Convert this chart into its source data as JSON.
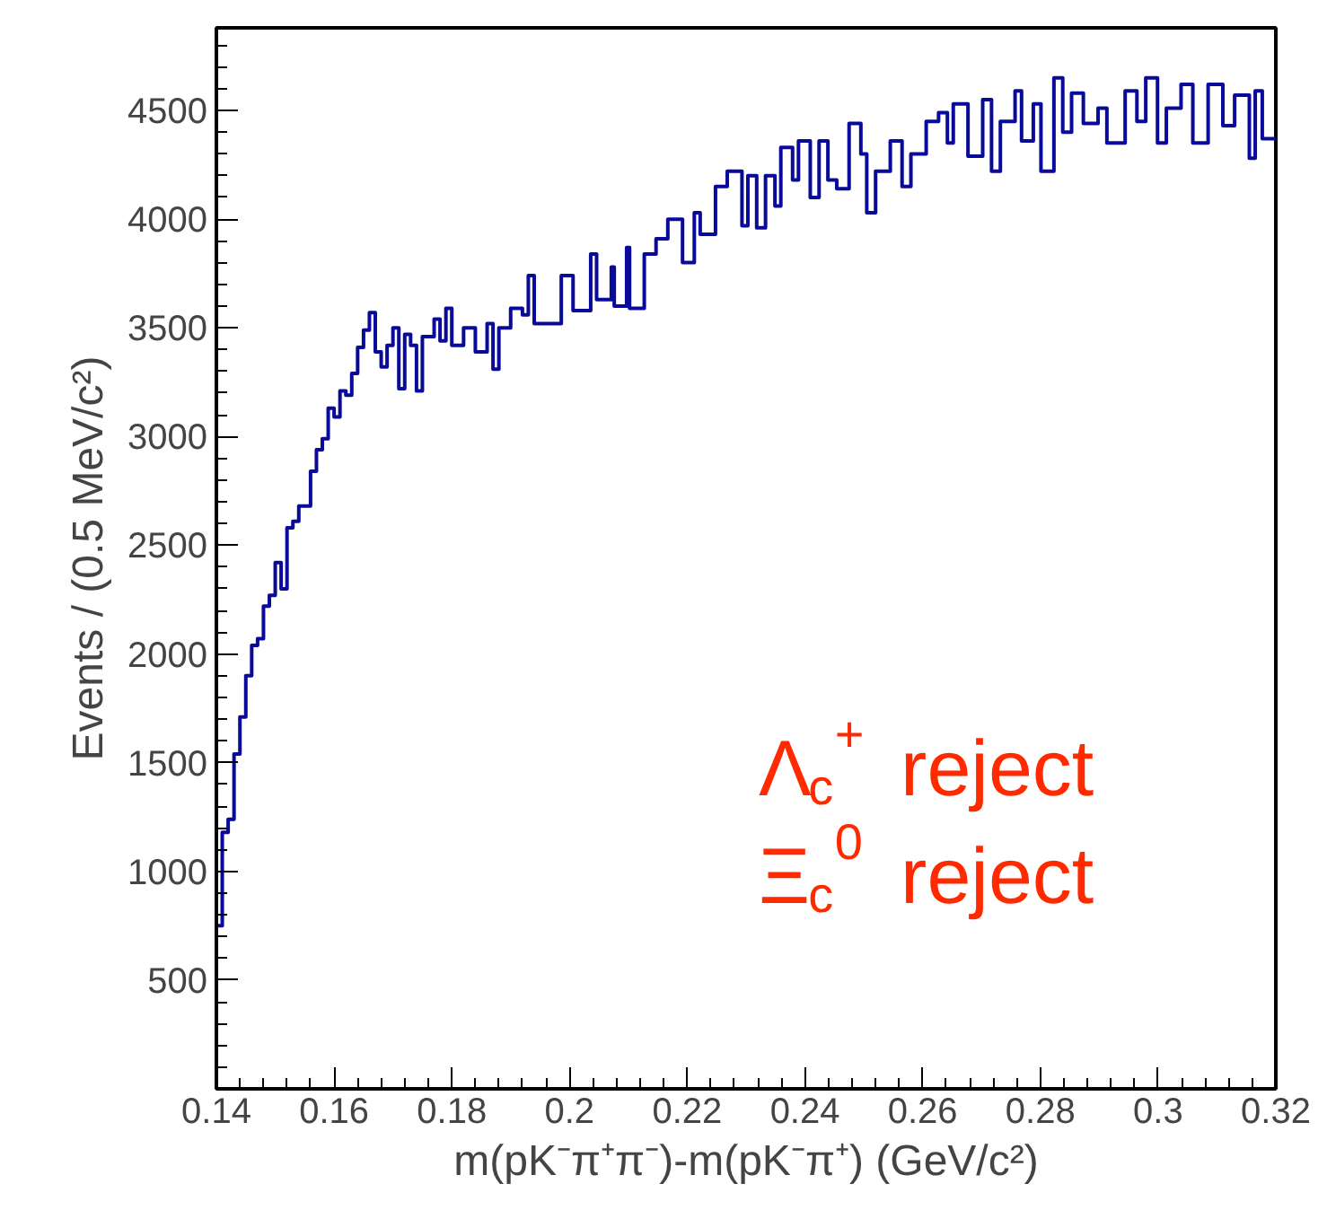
{
  "chart_data": {
    "type": "step",
    "xlabel": "m(pK⁻π⁺π⁻)-m(pK⁻π⁺) (GeV/c²)",
    "ylabel": "Events / (0.5 MeV/c²)",
    "annotations": [
      "Λ$_{c}$$^{+}$ reject",
      "Ξ$_{c}$$^{0}$ reject"
    ],
    "x": [
      0.14,
      0.141,
      0.142,
      0.143,
      0.144,
      0.145,
      0.146,
      0.147,
      0.148,
      0.149,
      0.15,
      0.151,
      0.152,
      0.153,
      0.154,
      0.155,
      0.156,
      0.157,
      0.158,
      0.159,
      0.16,
      0.161,
      0.162,
      0.163,
      0.164,
      0.165,
      0.166,
      0.167,
      0.168,
      0.169,
      0.17,
      0.171,
      0.172,
      0.173,
      0.174,
      0.175,
      0.177,
      0.178,
      0.179,
      0.18,
      0.182,
      0.184,
      0.186,
      0.187,
      0.188,
      0.19,
      0.192,
      0.193,
      0.194,
      0.1955,
      0.1986,
      0.2006,
      0.2036,
      0.2046,
      0.2071,
      0.2076,
      0.2097,
      0.2102,
      0.2127,
      0.2147,
      0.2167,
      0.2192,
      0.2212,
      0.2222,
      0.2248,
      0.2268,
      0.2293,
      0.2303,
      0.2318,
      0.2333,
      0.2349,
      0.2359,
      0.2379,
      0.2389,
      0.2409,
      0.2424,
      0.2439,
      0.2454,
      0.2475,
      0.2495,
      0.2505,
      0.252,
      0.2545,
      0.2565,
      0.258,
      0.2606,
      0.2627,
      0.2642,
      0.2652,
      0.2677,
      0.2702,
      0.2717,
      0.2732,
      0.2757,
      0.2768,
      0.2788,
      0.2801,
      0.2823,
      0.2838,
      0.2853,
      0.2873,
      0.2898,
      0.2913,
      0.2944,
      0.2964,
      0.2979,
      0.2999,
      0.3014,
      0.3039,
      0.3059,
      0.3085,
      0.311,
      0.313,
      0.3155,
      0.3165,
      0.3177,
      0.32
    ],
    "series": [
      {
        "color": "#0a0a9a",
        "values": [
          750,
          1180,
          1240,
          1540,
          1710,
          1900,
          2040,
          2070,
          2220,
          2270,
          2420,
          2300,
          2580,
          2610,
          2680,
          2680,
          2840,
          2940,
          2990,
          3130,
          3090,
          3210,
          3190,
          3290,
          3410,
          3490,
          3570,
          3390,
          3320,
          3420,
          3500,
          3220,
          3470,
          3420,
          3210,
          3460,
          3540,
          3440,
          3590,
          3420,
          3500,
          3390,
          3520,
          3310,
          3500,
          3590,
          3560,
          3740,
          3520,
          3520,
          3740,
          3580,
          3840,
          3630,
          3780,
          3600,
          3870,
          3590,
          3840,
          3910,
          4000,
          3800,
          4030,
          3930,
          4150,
          4220,
          3970,
          4200,
          3960,
          4200,
          4060,
          4330,
          4180,
          4360,
          4100,
          4360,
          4180,
          4140,
          4440,
          4300,
          4030,
          4220,
          4360,
          4150,
          4300,
          4450,
          4490,
          4350,
          4530,
          4290,
          4550,
          4220,
          4450,
          4590,
          4360,
          4530,
          4220,
          4650,
          4400,
          4580,
          4440,
          4510,
          4350,
          4590,
          4450,
          4650,
          4350,
          4510,
          4620,
          4350,
          4620,
          4430,
          4570,
          4280,
          4590,
          4370,
          4370
        ]
      }
    ],
    "xlim": [
      0.14,
      0.32
    ],
    "ylim": [
      0,
      4880
    ],
    "xticks": [
      {
        "value": 0.14,
        "label": "0.14"
      },
      {
        "value": 0.16,
        "label": "0.16"
      },
      {
        "value": 0.18,
        "label": "0.18"
      },
      {
        "value": 0.2,
        "label": "0.2"
      },
      {
        "value": 0.22,
        "label": "0.22"
      },
      {
        "value": 0.24,
        "label": "0.24"
      },
      {
        "value": 0.26,
        "label": "0.26"
      },
      {
        "value": 0.28,
        "label": "0.28"
      },
      {
        "value": 0.3,
        "label": "0.3"
      },
      {
        "value": 0.32,
        "label": "0.32"
      }
    ],
    "yticks": [
      500,
      1000,
      1500,
      2000,
      2500,
      3000,
      3500,
      4000,
      4500
    ],
    "grid": false
  }
}
